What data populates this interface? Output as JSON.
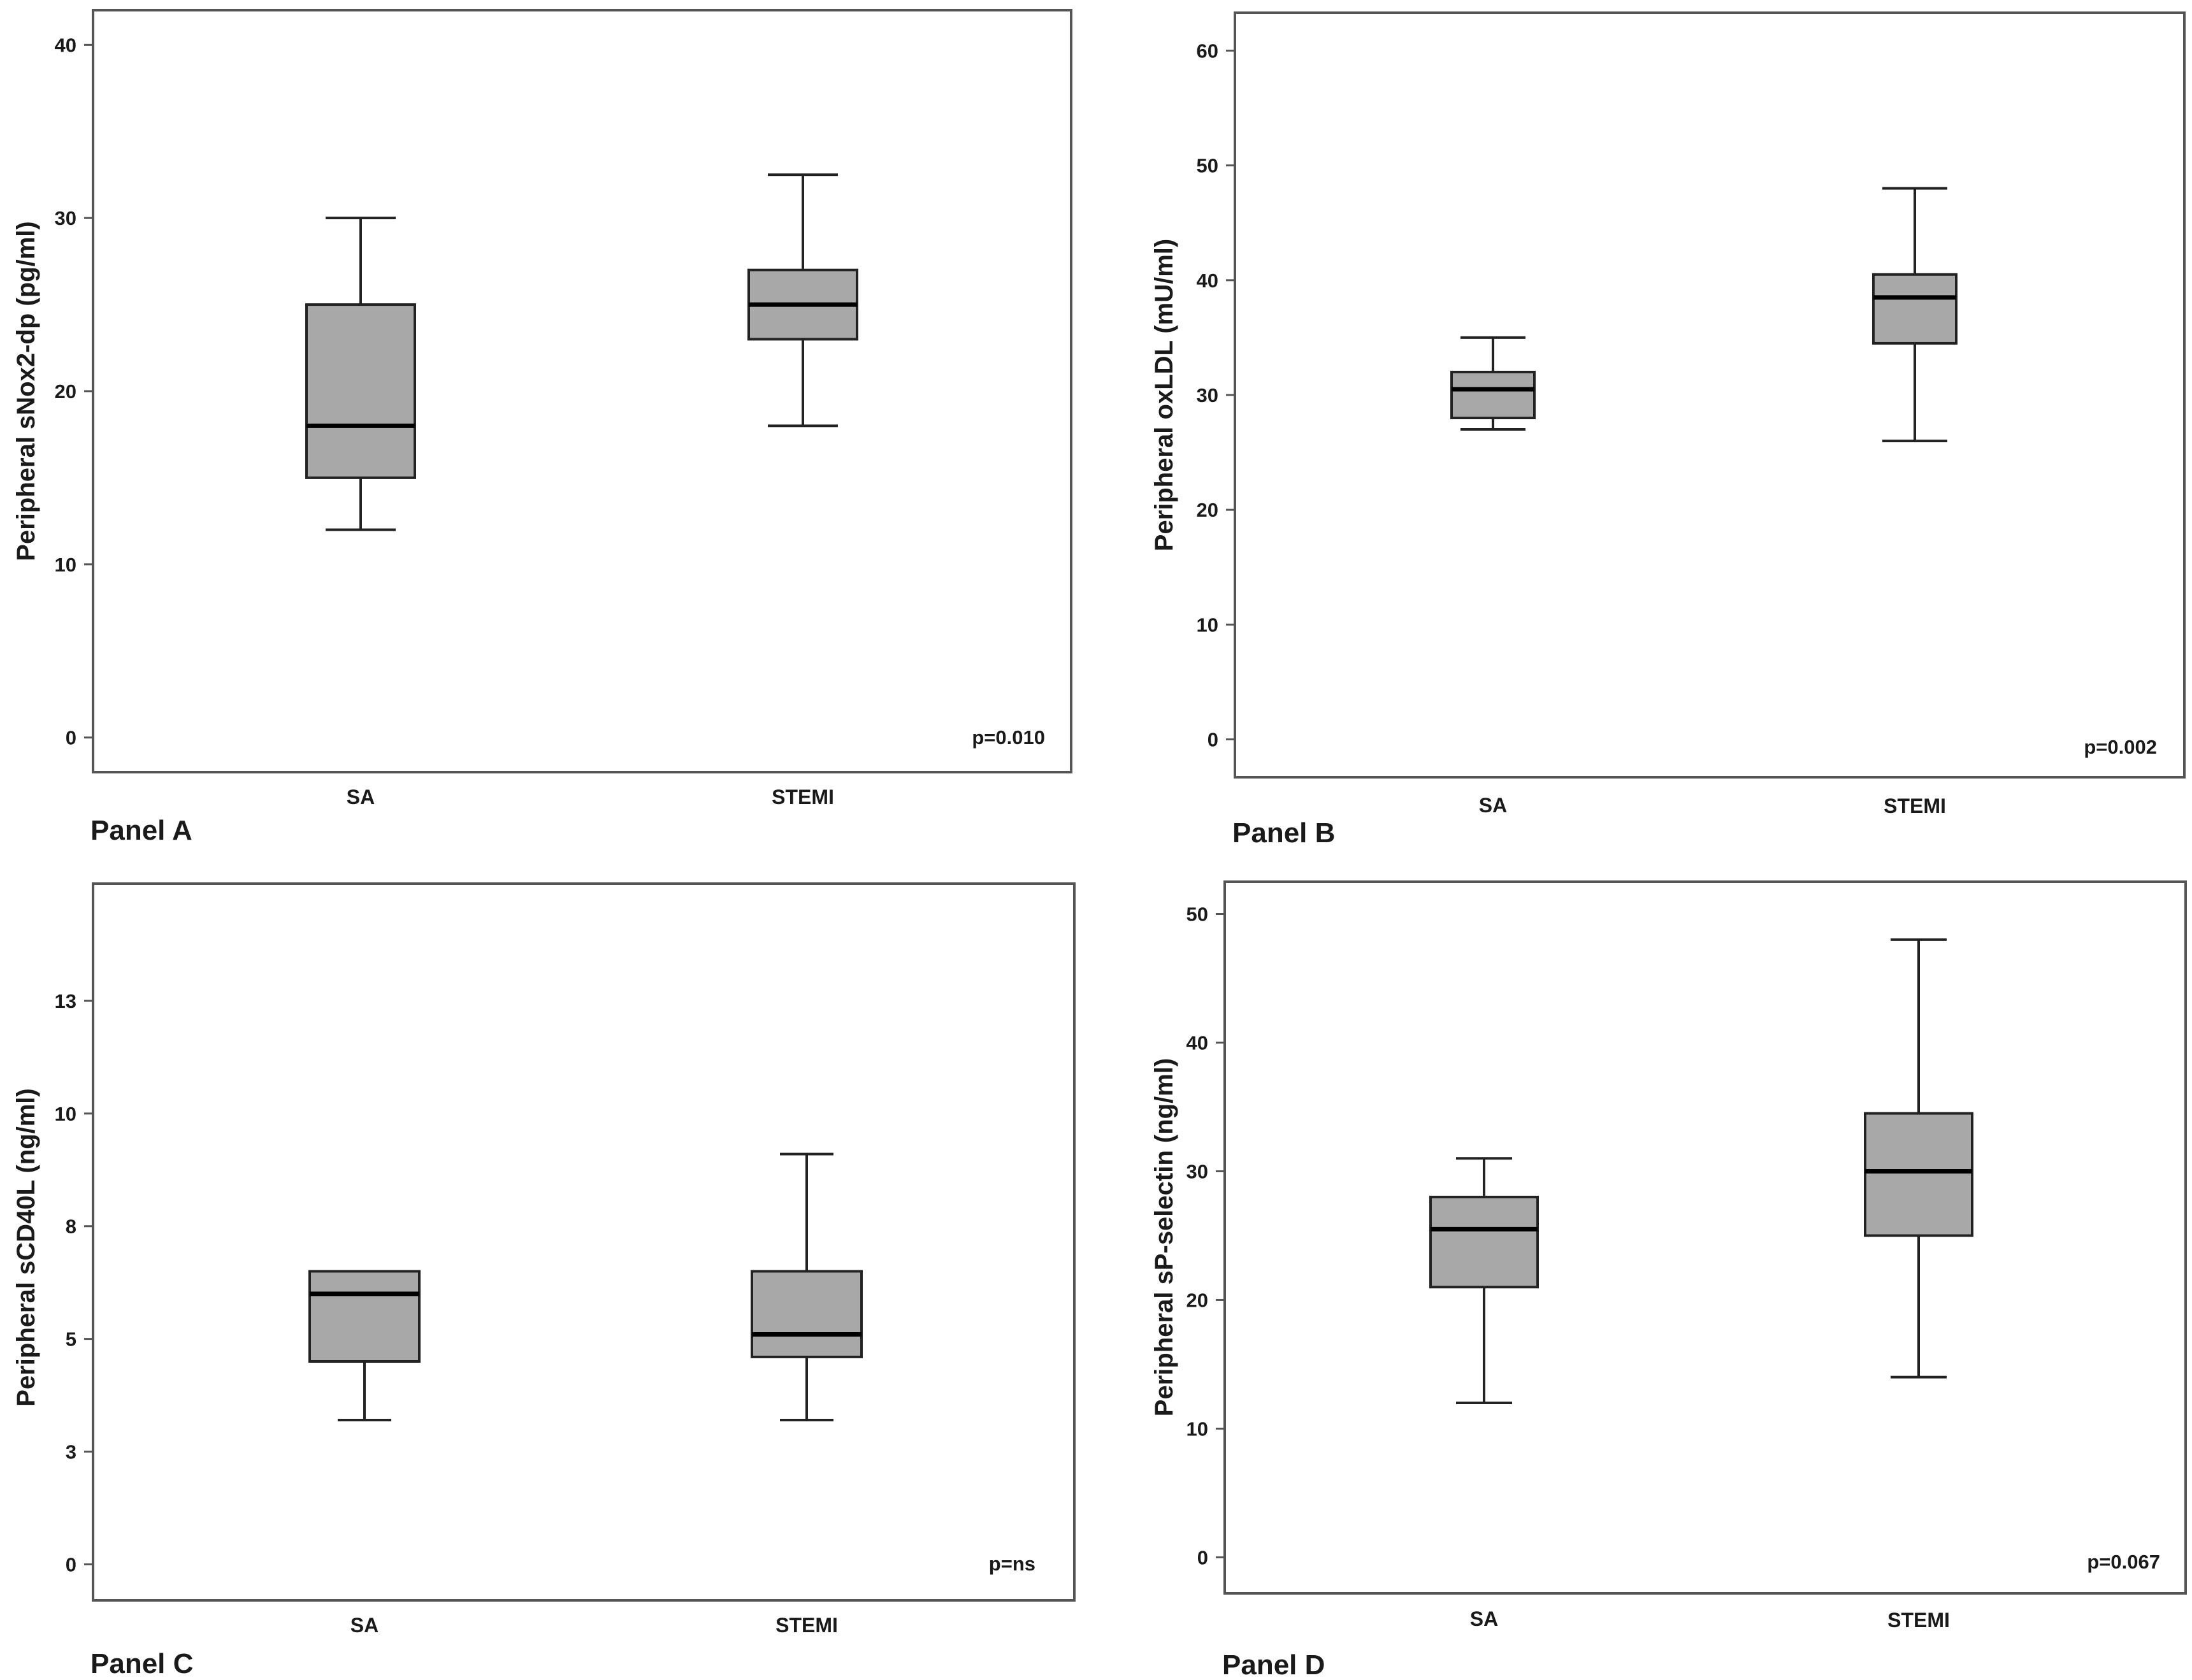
{
  "figure": {
    "panels": [
      {
        "panel_label": "Panel A",
        "p_value": "p=0.010",
        "chart_data": {
          "type": "box",
          "ylabel": "Peripheral sNox2-dp (pg/ml)",
          "xlabel": "",
          "ylim": [
            -2,
            42
          ],
          "yticks": [
            0,
            10,
            20,
            30,
            40
          ],
          "yticklabels": [
            "0",
            "10",
            "20",
            "30",
            "40"
          ],
          "categories": [
            "SA",
            "STEMI"
          ],
          "boxes": [
            {
              "name": "SA",
              "min": 12,
              "q1": 15,
              "median": 18,
              "q3": 25,
              "max": 30
            },
            {
              "name": "STEMI",
              "min": 18,
              "q1": 23,
              "median": 25,
              "q3": 27,
              "max": 32.5
            }
          ]
        }
      },
      {
        "panel_label": "Panel B",
        "p_value": "p=0.002",
        "chart_data": {
          "type": "box",
          "ylabel": "Peripheral oxLDL (mU/ml)",
          "xlabel": "",
          "ylim": [
            -3.3,
            63.3
          ],
          "yticks": [
            0,
            10,
            20,
            30,
            40,
            50,
            60
          ],
          "yticklabels": [
            "0",
            "10",
            "20",
            "30",
            "40",
            "50",
            "60"
          ],
          "categories": [
            "SA",
            "STEMI"
          ],
          "boxes": [
            {
              "name": "SA",
              "min": 27,
              "q1": 28,
              "median": 30.5,
              "q3": 32,
              "max": 35
            },
            {
              "name": "STEMI",
              "min": 26,
              "q1": 34.5,
              "median": 38.5,
              "q3": 40.5,
              "max": 48
            }
          ]
        }
      },
      {
        "panel_label": "Panel C",
        "p_value": "p=ns",
        "chart_data": {
          "type": "box",
          "ylabel": "Peripheral sCD40L (ng/ml)",
          "xlabel": "",
          "ylim": [
            -0.8,
            15.1
          ],
          "yticks": [
            0,
            2.5,
            5,
            7.5,
            10,
            12.5
          ],
          "yticklabels": [
            "0",
            "3",
            "5",
            "8",
            "10",
            "13"
          ],
          "categories": [
            "SA",
            "STEMI"
          ],
          "boxes": [
            {
              "name": "SA",
              "min": 3.2,
              "q1": 4.5,
              "median": 6.0,
              "q3": 6.5,
              "max": 6.5
            },
            {
              "name": "STEMI",
              "min": 3.2,
              "q1": 4.6,
              "median": 5.1,
              "q3": 6.5,
              "max": 9.1
            }
          ]
        }
      },
      {
        "panel_label": "Panel D",
        "p_value": "p=0.067",
        "chart_data": {
          "type": "box",
          "ylabel": "Peripheral sP-selectin (ng/ml)",
          "xlabel": "",
          "ylim": [
            -2.8,
            52.5
          ],
          "yticks": [
            0,
            10,
            20,
            30,
            40,
            50
          ],
          "yticklabels": [
            "0",
            "10",
            "20",
            "30",
            "40",
            "50"
          ],
          "categories": [
            "SA",
            "STEMI"
          ],
          "boxes": [
            {
              "name": "SA",
              "min": 12,
              "q1": 21,
              "median": 25.5,
              "q3": 28,
              "max": 31
            },
            {
              "name": "STEMI",
              "min": 14,
              "q1": 25,
              "median": 30,
              "q3": 34.5,
              "max": 48
            }
          ]
        }
      }
    ]
  }
}
